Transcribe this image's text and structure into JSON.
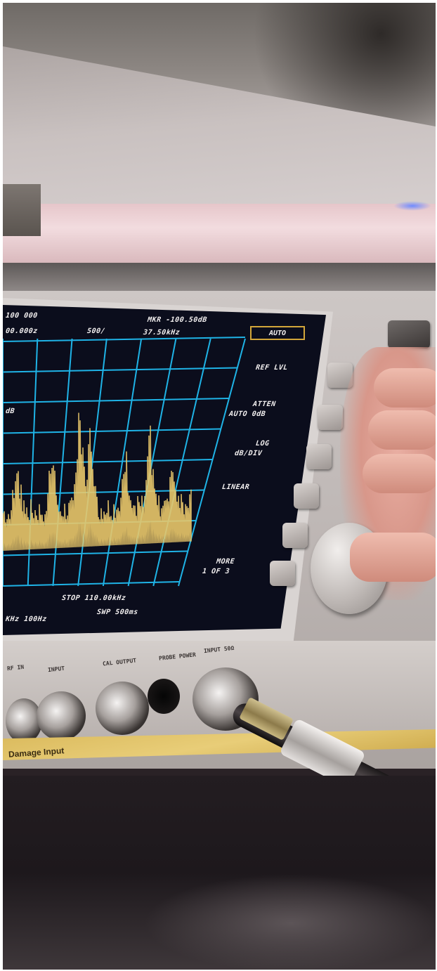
{
  "screen": {
    "top_left_1": "100 000",
    "top_left_2": "00.000z",
    "div": "500/",
    "marker": "MKR -100.50dB",
    "marker_freq": "37.50kHz",
    "auto": "AUTO",
    "ref_lvl": "REF LVL",
    "atten": "ATTEN",
    "atten_val": "AUTO 0dB",
    "log": "LOG",
    "log_val": "dB/DIV",
    "linear": "LINEAR",
    "more": "MORE",
    "more_val": "1 OF 3",
    "stop": "STOP 110.00kHz",
    "swp": "SWP 500ms",
    "left_1": "dB",
    "left_2": "KHz 100Hz",
    "trace_color": "#e8c76a",
    "grid_color": "#1fb3e6"
  },
  "panel": {
    "port_1": "RF IN",
    "port_2": "INPUT",
    "port_3": "CAL OUTPUT",
    "port_4": "PROBE POWER",
    "port_5": "INPUT 50Ω"
  },
  "warning": "Damage Input"
}
